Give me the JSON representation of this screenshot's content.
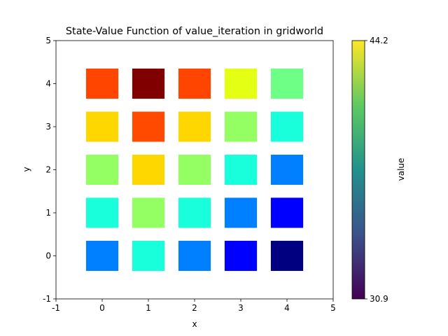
{
  "chart_data": {
    "type": "heatmap",
    "title": "State-Value Function of value_iteration in gridworld",
    "xlabel": "x",
    "ylabel": "y",
    "xlim": [
      -1,
      5
    ],
    "ylim": [
      -1,
      5
    ],
    "xticks": [
      "-1",
      "0",
      "1",
      "2",
      "3",
      "4",
      "5"
    ],
    "yticks": [
      "-1",
      "0",
      "1",
      "2",
      "3",
      "4",
      "5"
    ],
    "grid": false,
    "cell_size": 0.7,
    "cells": [
      {
        "x": 0,
        "y": 4,
        "color": "#ff4500"
      },
      {
        "x": 1,
        "y": 4,
        "color": "#800000"
      },
      {
        "x": 2,
        "y": 4,
        "color": "#ff4500"
      },
      {
        "x": 3,
        "y": 4,
        "color": "#e4ff13"
      },
      {
        "x": 4,
        "y": 4,
        "color": "#6eff87"
      },
      {
        "x": 0,
        "y": 3,
        "color": "#ffd700"
      },
      {
        "x": 1,
        "y": 3,
        "color": "#ff4a00"
      },
      {
        "x": 2,
        "y": 3,
        "color": "#ffd700"
      },
      {
        "x": 3,
        "y": 3,
        "color": "#94ff63"
      },
      {
        "x": 4,
        "y": 3,
        "color": "#1affdb"
      },
      {
        "x": 0,
        "y": 2,
        "color": "#94ff63"
      },
      {
        "x": 1,
        "y": 2,
        "color": "#ffd700"
      },
      {
        "x": 2,
        "y": 2,
        "color": "#94ff63"
      },
      {
        "x": 3,
        "y": 2,
        "color": "#1affdb"
      },
      {
        "x": 4,
        "y": 2,
        "color": "#0080ff"
      },
      {
        "x": 0,
        "y": 1,
        "color": "#1affdb"
      },
      {
        "x": 1,
        "y": 1,
        "color": "#94ff63"
      },
      {
        "x": 2,
        "y": 1,
        "color": "#1affdb"
      },
      {
        "x": 3,
        "y": 1,
        "color": "#0080ff"
      },
      {
        "x": 4,
        "y": 1,
        "color": "#0000ff"
      },
      {
        "x": 0,
        "y": 0,
        "color": "#0080ff"
      },
      {
        "x": 1,
        "y": 0,
        "color": "#1affdb"
      },
      {
        "x": 2,
        "y": 0,
        "color": "#0080ff"
      },
      {
        "x": 3,
        "y": 0,
        "color": "#0000ff"
      },
      {
        "x": 4,
        "y": 0,
        "color": "#000080"
      }
    ],
    "colorbar": {
      "label": "value",
      "min": 30.9,
      "max": 44.2,
      "min_label": "30.9",
      "max_label": "44.2",
      "colormap": "viridis",
      "stops": [
        "#440154",
        "#3b528b",
        "#21918c",
        "#5ec962",
        "#fde725"
      ]
    }
  }
}
